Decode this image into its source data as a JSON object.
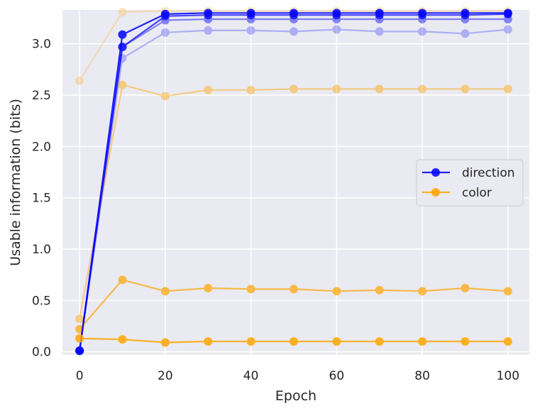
{
  "chart_data": {
    "type": "line",
    "title": "",
    "xlabel": "Epoch",
    "ylabel": "Usable information (bits)",
    "xlim": [
      -4,
      105
    ],
    "ylim": [
      -0.03,
      3.33
    ],
    "xticks": [
      0,
      20,
      40,
      60,
      80,
      100
    ],
    "yticks": [
      0.0,
      0.5,
      1.0,
      1.5,
      2.0,
      2.5,
      3.0
    ],
    "x": [
      0,
      10,
      20,
      30,
      40,
      50,
      60,
      70,
      80,
      90,
      100
    ],
    "grid": true,
    "legend": {
      "placement": "center-right",
      "entries": [
        "direction",
        "color"
      ]
    },
    "colors": {
      "direction": "#0000ff",
      "color": "#ffa500",
      "background": "#eaeaf2",
      "grid": "#ffffff"
    },
    "series": [
      {
        "group": "direction",
        "alpha": 0.85,
        "values": [
          0.01,
          3.09,
          3.29,
          3.3,
          3.3,
          3.3,
          3.3,
          3.3,
          3.3,
          3.3,
          3.3
        ]
      },
      {
        "group": "direction",
        "alpha": 0.7,
        "values": [
          0.01,
          2.97,
          3.27,
          3.28,
          3.28,
          3.28,
          3.28,
          3.28,
          3.28,
          3.28,
          3.29
        ]
      },
      {
        "group": "direction",
        "alpha": 0.45,
        "values": [
          0.01,
          2.97,
          3.23,
          3.24,
          3.24,
          3.24,
          3.24,
          3.24,
          3.24,
          3.24,
          3.24
        ]
      },
      {
        "group": "direction",
        "alpha": 0.25,
        "values": [
          0.01,
          2.86,
          3.11,
          3.13,
          3.13,
          3.12,
          3.14,
          3.12,
          3.12,
          3.1,
          3.14
        ]
      },
      {
        "group": "color",
        "alpha": 0.85,
        "values": [
          0.13,
          0.12,
          0.09,
          0.1,
          0.1,
          0.1,
          0.1,
          0.1,
          0.1,
          0.1,
          0.1
        ]
      },
      {
        "group": "color",
        "alpha": 0.7,
        "values": [
          0.22,
          0.7,
          0.59,
          0.62,
          0.61,
          0.61,
          0.59,
          0.6,
          0.59,
          0.62,
          0.59
        ]
      },
      {
        "group": "color",
        "alpha": 0.45,
        "values": [
          0.32,
          2.6,
          2.49,
          2.55,
          2.55,
          2.56,
          2.56,
          2.56,
          2.56,
          2.56,
          2.56
        ]
      },
      {
        "group": "color",
        "alpha": 0.25,
        "values": [
          2.64,
          3.31,
          3.32,
          3.32,
          3.32,
          3.32,
          3.32,
          3.32,
          3.32,
          3.32,
          3.32
        ]
      }
    ]
  }
}
